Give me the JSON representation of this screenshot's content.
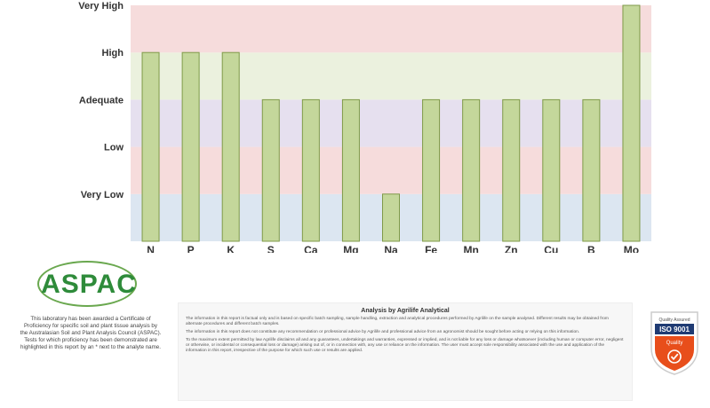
{
  "chart_data": {
    "type": "bar",
    "categories": [
      "N",
      "P",
      "K",
      "S",
      "Ca",
      "Mg",
      "Na",
      "Fe",
      "Mn",
      "Zn",
      "Cu",
      "B",
      "Mo"
    ],
    "values": [
      4,
      4,
      4,
      3,
      3,
      3,
      1,
      3,
      3,
      3,
      3,
      3,
      5
    ],
    "y_levels": [
      "Very Low",
      "Low",
      "Adequate",
      "High",
      "Very High"
    ],
    "ylim": [
      0,
      5
    ],
    "grid": false,
    "bands": [
      {
        "level": "Very Low",
        "color": "#dce6f1"
      },
      {
        "level": "Low",
        "color": "#f6dcdc"
      },
      {
        "level": "Adequate",
        "color": "#e6e0ef"
      },
      {
        "level": "High",
        "color": "#ebf1de"
      },
      {
        "level": "Very High",
        "color": "#f6dcdc"
      }
    ],
    "bar_color": "#c4d79b",
    "bar_border": "#7f9a48"
  },
  "accreditation": {
    "logo_text": "ASPAC",
    "statement": "This laboratory has been awarded a Certificate of Proficiency for specific soil and plant tissue analysis by the Australasian Soil and Plant Analysis Council (ASPAC). Tests for which proficiency has been demonstrated are highlighted in this report by an * next to the analyte name."
  },
  "disclaimer": {
    "title": "Analysis by Agrilife Analytical",
    "paragraphs": [
      "The information in this report is factual only and is based on specific batch sampling, sample handling, extraction and analytical procedures performed by Agrilife on the sample analysed. Different results may be obtained from alternate procedures and different batch samples.",
      "The information in this report does not constitute any recommendation or professional advice by Agrilife and professional advice from an agronomist should be sought before acting or relying on this information.",
      "To the maximum extent permitted by law Agrilife disclaims all and any guarantees, undertakings and warranties, expressed or implied, and is not liable for any loss or damage whatsoever (including human or computer error, negligent or otherwise, or incidental or consequential loss or damage) arising out of, or in connection with, any use or reliance on the information. The user must accept sole responsibility associated with the use and application of the information in this report, irrespective of the purpose for which such use or results are applied."
    ]
  },
  "iso_badge": {
    "top_text": "Quality Assured",
    "standard": "ISO 9001",
    "label": "Quality",
    "icon": "checkmark-icon",
    "color": "#e84e1b"
  }
}
